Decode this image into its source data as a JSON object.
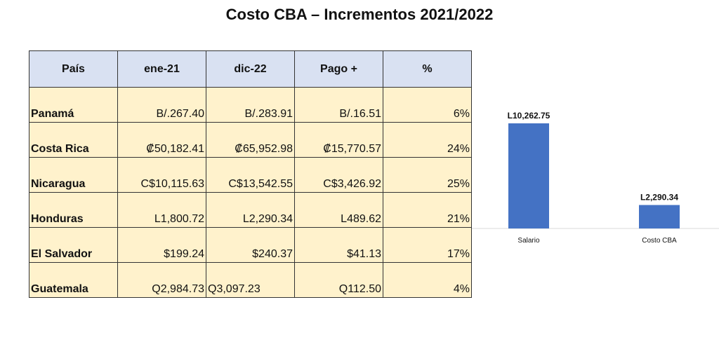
{
  "title": "Costo CBA – Incrementos 2021/2022",
  "table": {
    "headers": [
      "País",
      "ene-21",
      "dic-22",
      "Pago +",
      "%"
    ],
    "rows": [
      {
        "country": "Panamá",
        "ene21": "B/.267.40",
        "dic22": "B/.283.91",
        "pago": "B/.16.51",
        "pct": "6%"
      },
      {
        "country": "Costa Rica",
        "ene21": "₡50,182.41",
        "dic22": "₡65,952.98",
        "pago": "₡15,770.57",
        "pct": "24%"
      },
      {
        "country": "Nicaragua",
        "ene21": "C$10,115.63",
        "dic22": "C$13,542.55",
        "pago": "C$3,426.92",
        "pct": "25%"
      },
      {
        "country": "Honduras",
        "ene21": "L1,800.72",
        "dic22": "L2,290.34",
        "pago": "L489.62",
        "pct": "21%"
      },
      {
        "country": "El Salvador",
        "ene21": "$199.24",
        "dic22": "$240.37",
        "pago": "$41.13",
        "pct": "17%"
      },
      {
        "country": "Guatemala",
        "ene21": "Q2,984.73",
        "dic22": "Q3,097.23",
        "pago": "Q112.50",
        "pct": "4%"
      }
    ]
  },
  "chart_data": {
    "type": "bar",
    "categories": [
      "Salario",
      "Costo CBA"
    ],
    "values": [
      10262.75,
      2290.34
    ],
    "data_labels": [
      "L10,262.75",
      "L2,290.34"
    ],
    "ylim": [
      0,
      13000
    ],
    "grid": false,
    "bar_color": "#4472c4"
  }
}
